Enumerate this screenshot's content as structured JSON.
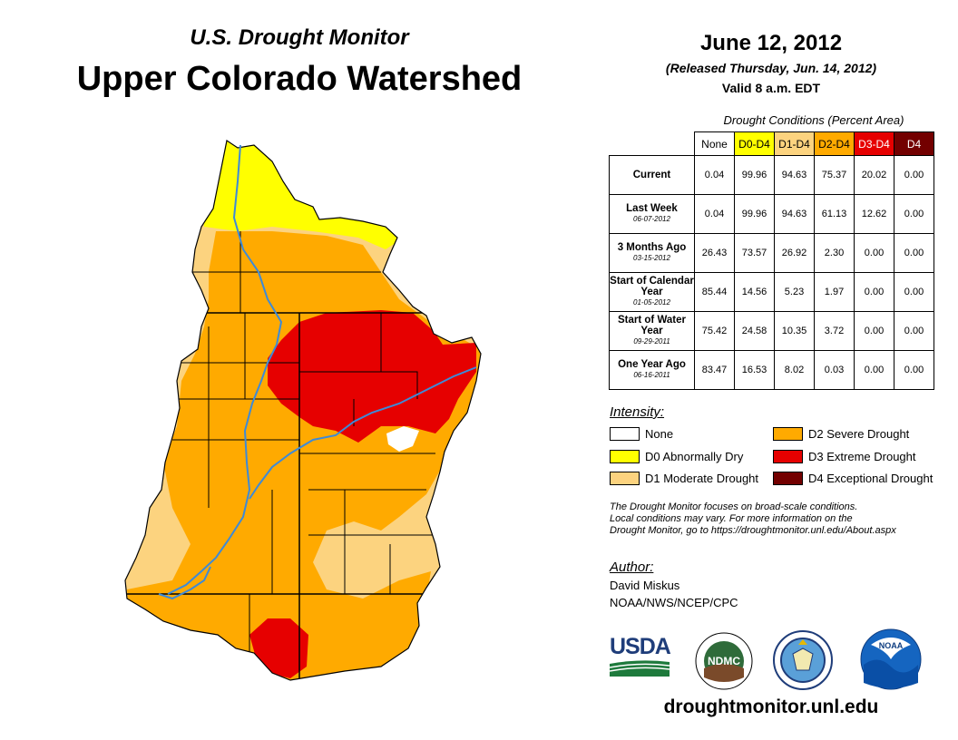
{
  "header": {
    "title": "U.S. Drought Monitor",
    "subtitle": "Upper Colorado Watershed",
    "date": "June 12, 2012",
    "released": "(Released Thursday, Jun. 14, 2012)",
    "valid": "Valid 8 a.m. EDT"
  },
  "table": {
    "caption": "Drought Conditions (Percent Area)",
    "columns": [
      "None",
      "D0-D4",
      "D1-D4",
      "D2-D4",
      "D3-D4",
      "D4"
    ],
    "column_colors": [
      "#ffffff",
      "#ffff00",
      "#fcd37f",
      "#ffaa00",
      "#e60000",
      "#730000"
    ],
    "rows": [
      {
        "label": "Current",
        "sub": "",
        "values": [
          "0.04",
          "99.96",
          "94.63",
          "75.37",
          "20.02",
          "0.00"
        ]
      },
      {
        "label": "Last Week",
        "sub": "06-07-2012",
        "values": [
          "0.04",
          "99.96",
          "94.63",
          "61.13",
          "12.62",
          "0.00"
        ]
      },
      {
        "label": "3 Months Ago",
        "sub": "03-15-2012",
        "values": [
          "26.43",
          "73.57",
          "26.92",
          "2.30",
          "0.00",
          "0.00"
        ]
      },
      {
        "label": "Start of Calendar Year",
        "sub": "01-05-2012",
        "values": [
          "85.44",
          "14.56",
          "5.23",
          "1.97",
          "0.00",
          "0.00"
        ]
      },
      {
        "label": "Start of Water Year",
        "sub": "09-29-2011",
        "values": [
          "75.42",
          "24.58",
          "10.35",
          "3.72",
          "0.00",
          "0.00"
        ]
      },
      {
        "label": "One Year Ago",
        "sub": "06-16-2011",
        "values": [
          "83.47",
          "16.53",
          "8.02",
          "0.03",
          "0.00",
          "0.00"
        ]
      }
    ]
  },
  "legend": {
    "label": "Intensity:",
    "items": [
      {
        "label": "None",
        "color": "#ffffff"
      },
      {
        "label": "D0 Abnormally Dry",
        "color": "#ffff00"
      },
      {
        "label": "D1 Moderate Drought",
        "color": "#fcd37f"
      },
      {
        "label": "D2 Severe Drought",
        "color": "#ffaa00"
      },
      {
        "label": "D3 Extreme Drought",
        "color": "#e60000"
      },
      {
        "label": "D4 Exceptional Drought",
        "color": "#730000"
      }
    ]
  },
  "note": {
    "line1": "The Drought Monitor focuses on broad-scale conditions.",
    "line2": "Local conditions may vary. For more information on the",
    "line3": "Drought Monitor, go to https://droughtmonitor.unl.edu/About.aspx"
  },
  "author": {
    "label": "Author:",
    "name": "David Miskus",
    "org": "NOAA/NWS/NCEP/CPC"
  },
  "logos": {
    "usda": "USDA",
    "ndmc": "NDMC",
    "noaa": "NOAA"
  },
  "website": "droughtmonitor.unl.edu",
  "colors": {
    "river": "#3d8ad8",
    "boundary": "#000000"
  }
}
